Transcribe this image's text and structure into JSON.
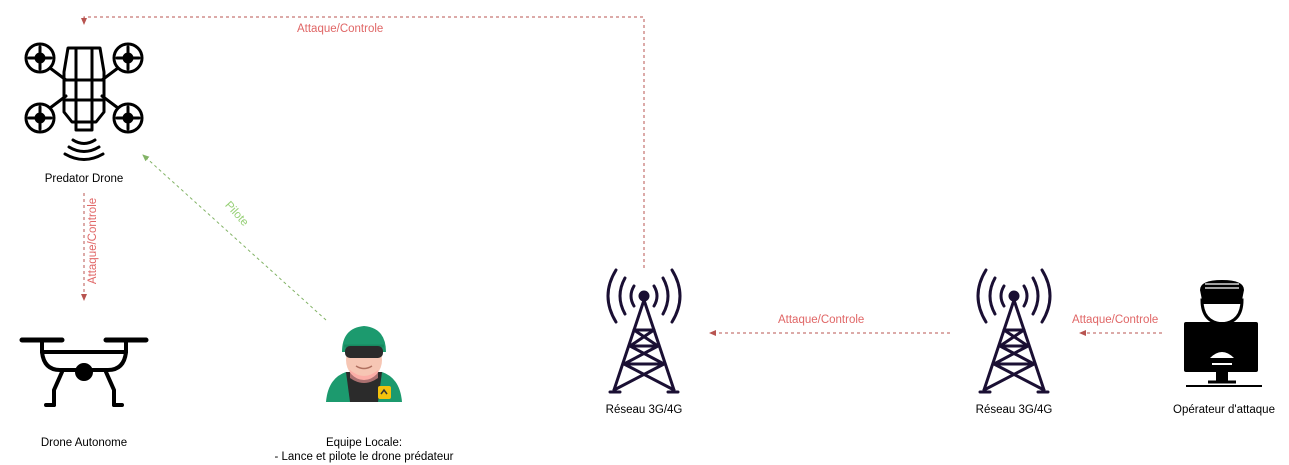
{
  "nodes": {
    "predator_drone": {
      "label": "Predator Drone"
    },
    "drone_autonome": {
      "label": "Drone Autonome"
    },
    "equipe_locale": {
      "label_line1": "Equipe Locale:",
      "label_line2": "- Lance et pilote le drone prédateur"
    },
    "reseau_1": {
      "label": "Réseau 3G/4G"
    },
    "reseau_2": {
      "label": "Réseau 3G/4G"
    },
    "operateur": {
      "label": "Opérateur d'attaque"
    }
  },
  "edges": {
    "top_link": {
      "label": "Attaque/Controle"
    },
    "drone_to_autonome": {
      "label": "Attaque/Controle"
    },
    "pilote": {
      "label": "Pilote"
    },
    "reseau2_to_reseau1": {
      "label": "Attaque/Controle"
    },
    "operateur_to_reseau2": {
      "label": "Attaque/Controle"
    }
  },
  "colors": {
    "attack": "#b85450",
    "attack_text": "#e06666",
    "pilot": "#82b366",
    "pilot_text": "#97d077",
    "icon_dark": "#000000",
    "tower": "#1a0f33",
    "soldier_green": "#1c9a6e",
    "soldier_skin": "#f6c6b4"
  }
}
